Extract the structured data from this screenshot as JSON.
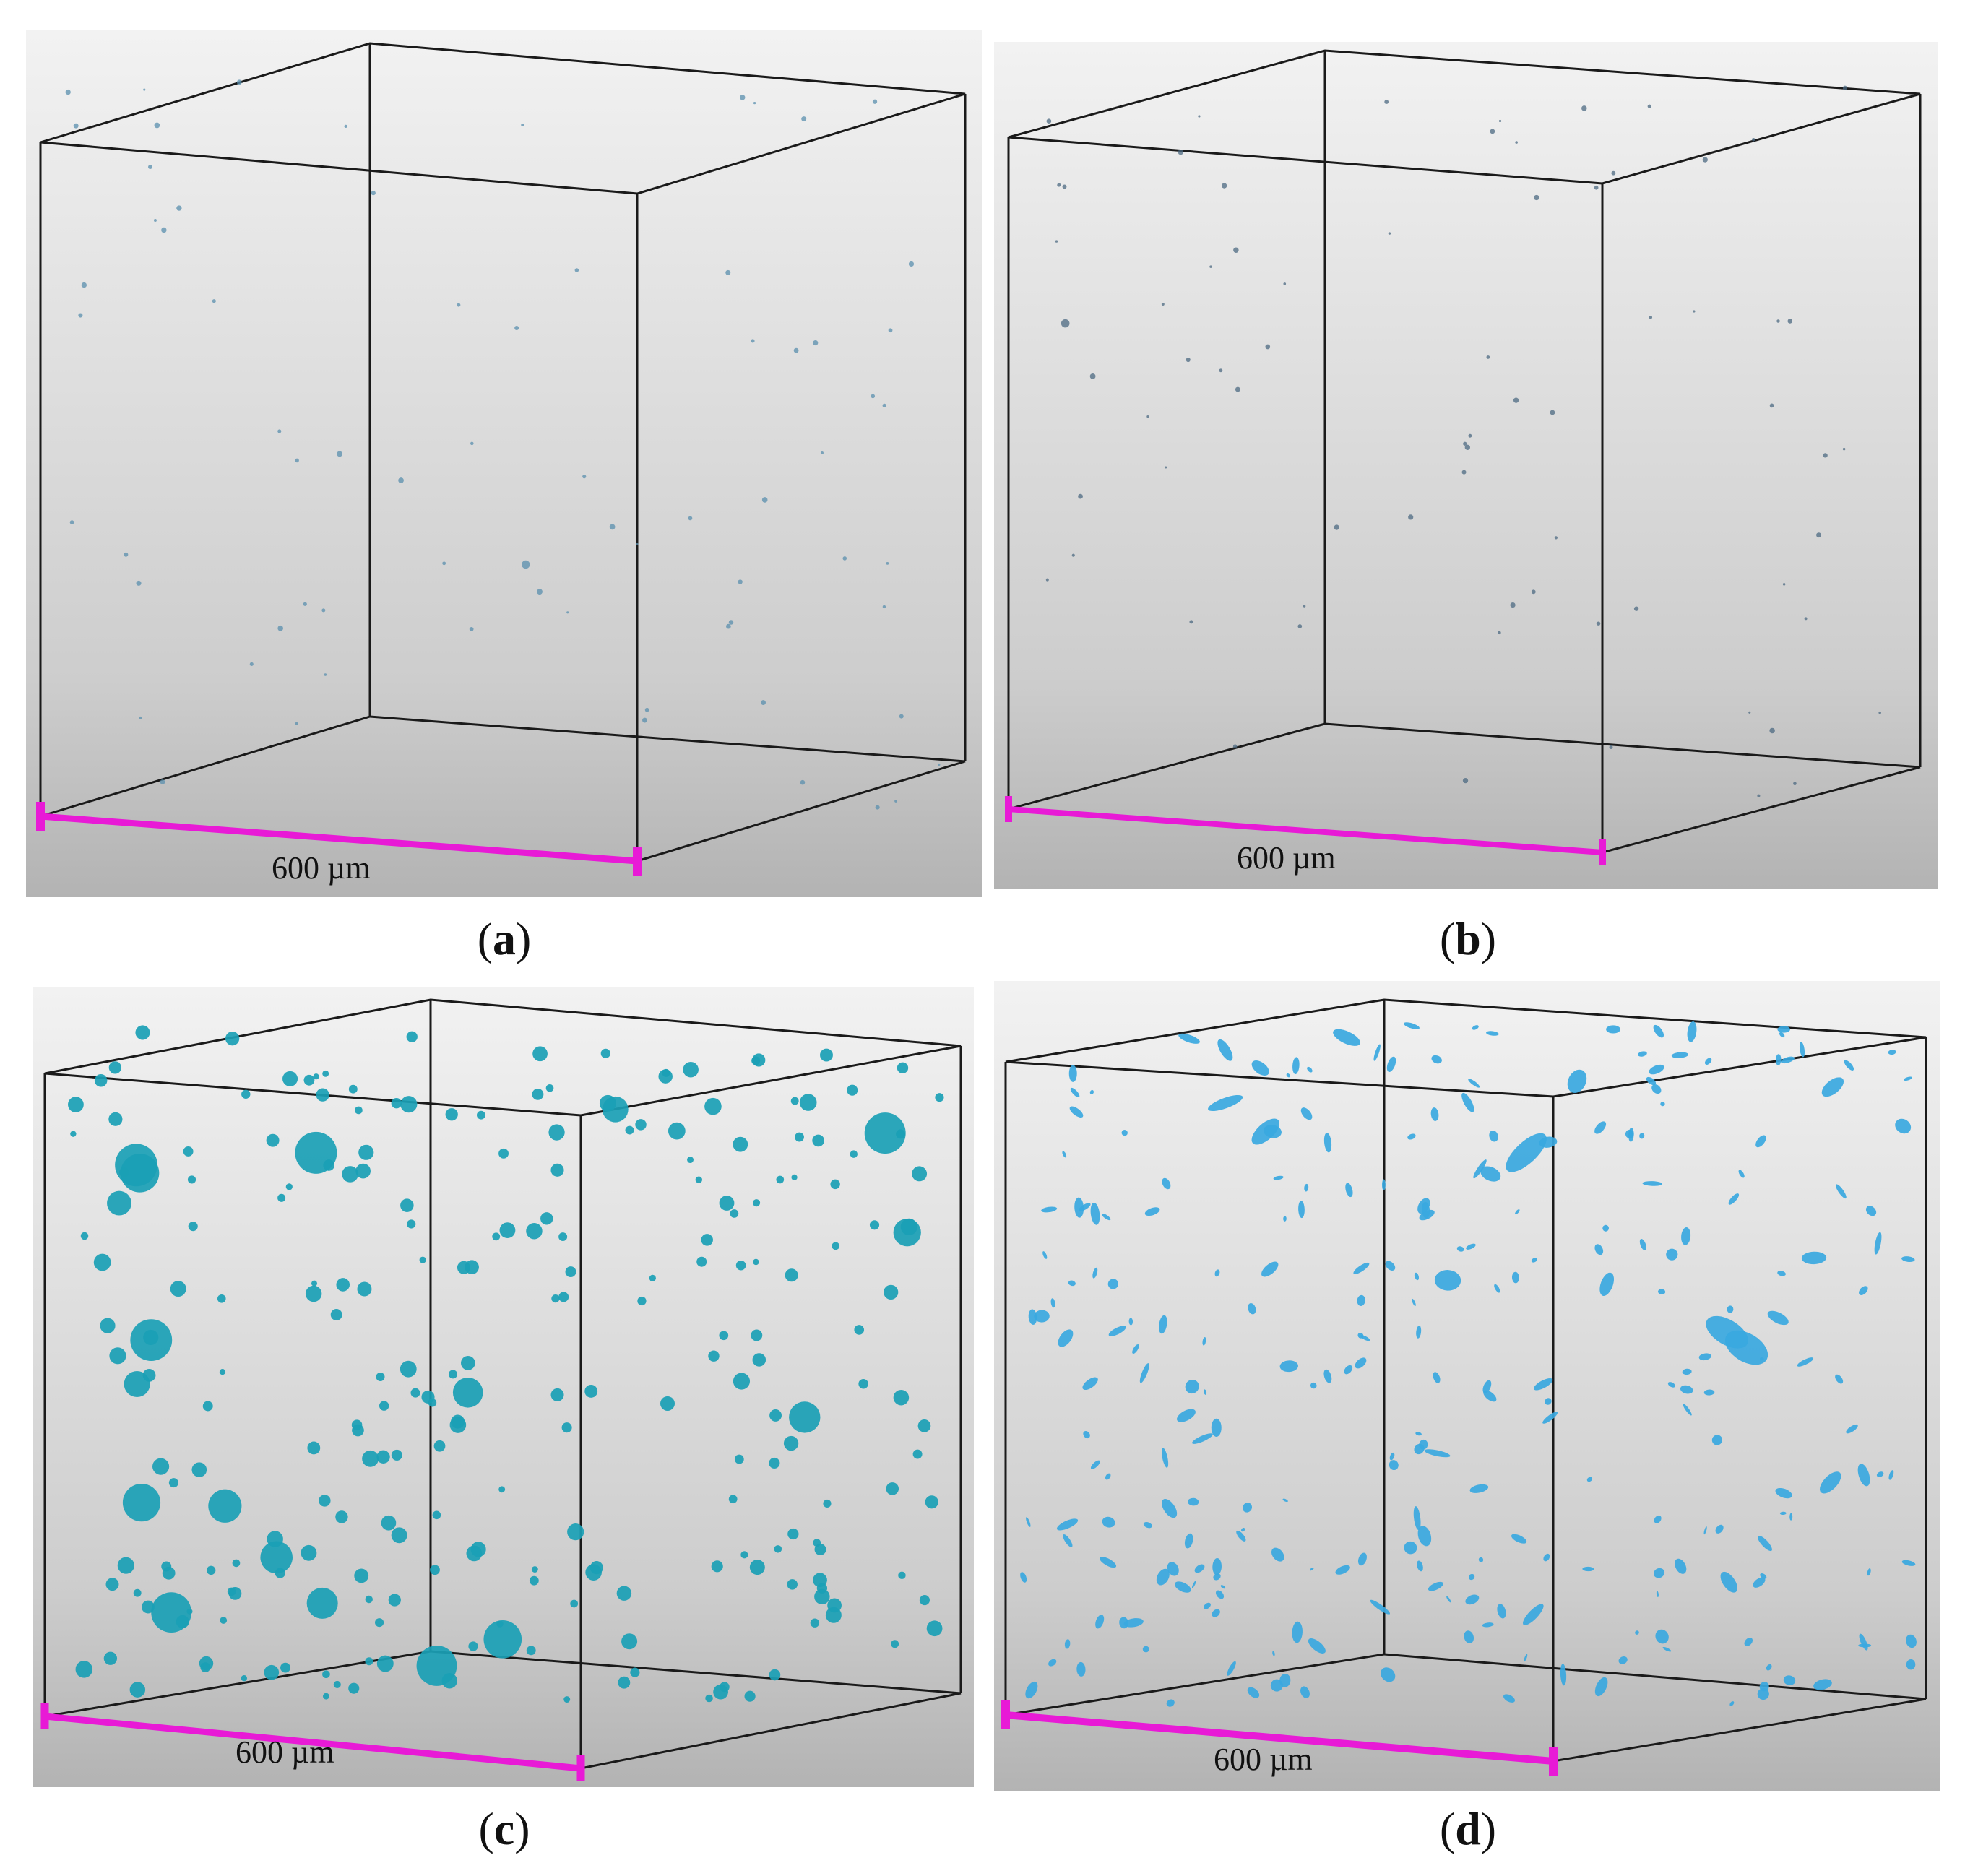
{
  "panels": [
    {
      "id": "a",
      "label": "a",
      "scale_text": "600 µm",
      "pores": "sparse-tiny",
      "pore_color": "#5a8fae"
    },
    {
      "id": "b",
      "label": "b",
      "scale_text": "600 µm",
      "pores": "sparse-tiny",
      "pore_color": "#4c6a82"
    },
    {
      "id": "c",
      "label": "c",
      "scale_text": "600 µm",
      "pores": "spherical-dense",
      "pore_color": "#1aa0b5"
    },
    {
      "id": "d",
      "label": "d",
      "scale_text": "600 µm",
      "pores": "irregular-dense",
      "pore_color": "#3aa8e0"
    }
  ],
  "colors": {
    "scale_bar": "#e81ad6",
    "cube_edge": "#1a1a1a",
    "bg_top": "#f2f2f2",
    "bg_bottom": "#b5b5b5"
  }
}
